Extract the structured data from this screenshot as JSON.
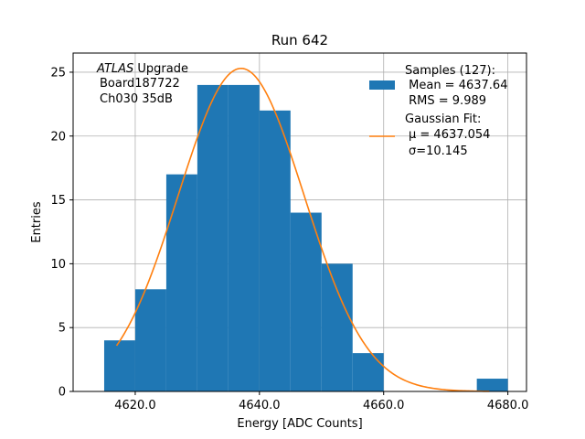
{
  "chart_data": {
    "type": "bar",
    "title": "Run 642",
    "xlabel": "Energy [ADC Counts]",
    "ylabel": "Entries",
    "xlim": [
      4610.0,
      4683.0
    ],
    "ylim": [
      0,
      26.5
    ],
    "grid": true,
    "xticks": [
      4620.0,
      4640.0,
      4660.0,
      4680.0
    ],
    "xtick_labels": [
      "4620.0",
      "4640.0",
      "4660.0",
      "4680.0"
    ],
    "yticks": [
      0,
      5,
      10,
      15,
      20,
      25
    ],
    "ytick_labels": [
      "0",
      "5",
      "10",
      "15",
      "20",
      "25"
    ],
    "bins": [
      {
        "x0": 4615.0,
        "x1": 4620.0,
        "count": 4
      },
      {
        "x0": 4620.0,
        "x1": 4625.0,
        "count": 8
      },
      {
        "x0": 4625.0,
        "x1": 4630.0,
        "count": 17
      },
      {
        "x0": 4630.0,
        "x1": 4635.0,
        "count": 24
      },
      {
        "x0": 4635.0,
        "x1": 4640.0,
        "count": 24
      },
      {
        "x0": 4640.0,
        "x1": 4645.0,
        "count": 22
      },
      {
        "x0": 4645.0,
        "x1": 4650.0,
        "count": 14
      },
      {
        "x0": 4650.0,
        "x1": 4655.0,
        "count": 10
      },
      {
        "x0": 4655.0,
        "x1": 4660.0,
        "count": 3
      },
      {
        "x0": 4660.0,
        "x1": 4665.0,
        "count": 0
      },
      {
        "x0": 4665.0,
        "x1": 4670.0,
        "count": 0
      },
      {
        "x0": 4670.0,
        "x1": 4675.0,
        "count": 0
      },
      {
        "x0": 4675.0,
        "x1": 4680.0,
        "count": 1
      }
    ],
    "fit": {
      "type": "gaussian",
      "mu": 4637.054,
      "sigma": 10.145,
      "amplitude": 25.3,
      "x_range": [
        4617.0,
        4677.0
      ]
    },
    "annotation": {
      "italic": "ATLAS",
      "rest": " Upgrade",
      "line2": "Board187722",
      "line3": "Ch030 35dB"
    },
    "legend": {
      "placement": "top-right",
      "entries": [
        {
          "kind": "patch",
          "lines": [
            "Samples (127):",
            " Mean = 4637.64",
            " RMS = 9.989"
          ]
        },
        {
          "kind": "line",
          "lines": [
            "Gaussian Fit:",
            "μ = 4637.054",
            "σ=10.145"
          ]
        }
      ]
    },
    "colors": {
      "bar": "#1f77b4",
      "fit": "#ff7f0e",
      "grid": "#b0b0b0"
    }
  }
}
